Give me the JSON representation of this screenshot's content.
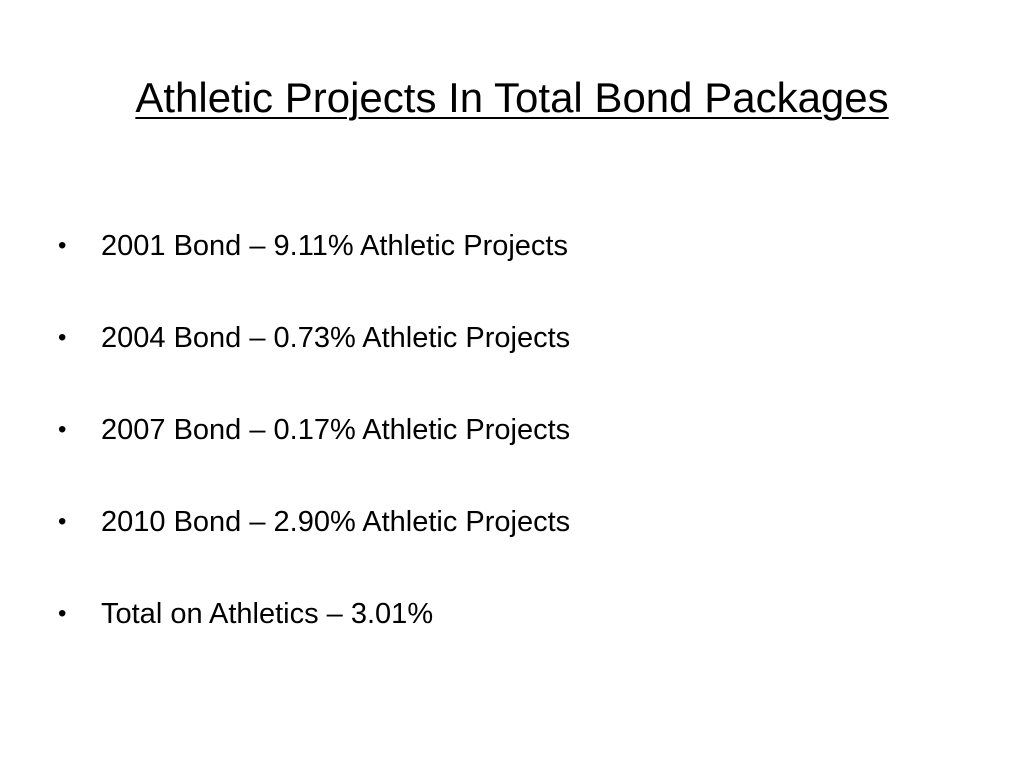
{
  "slide": {
    "title": "Athletic Projects In Total Bond Packages",
    "bullet_symbol": "•",
    "bullets": [
      {
        "text": "2001 Bond – 9.11% Athletic Projects"
      },
      {
        "text": "2004 Bond – 0.73% Athletic Projects"
      },
      {
        "text": "2007 Bond – 0.17% Athletic Projects"
      },
      {
        "text": "2010 Bond – 2.90% Athletic Projects"
      },
      {
        "text": "Total on Athletics – 3.01%"
      }
    ]
  }
}
